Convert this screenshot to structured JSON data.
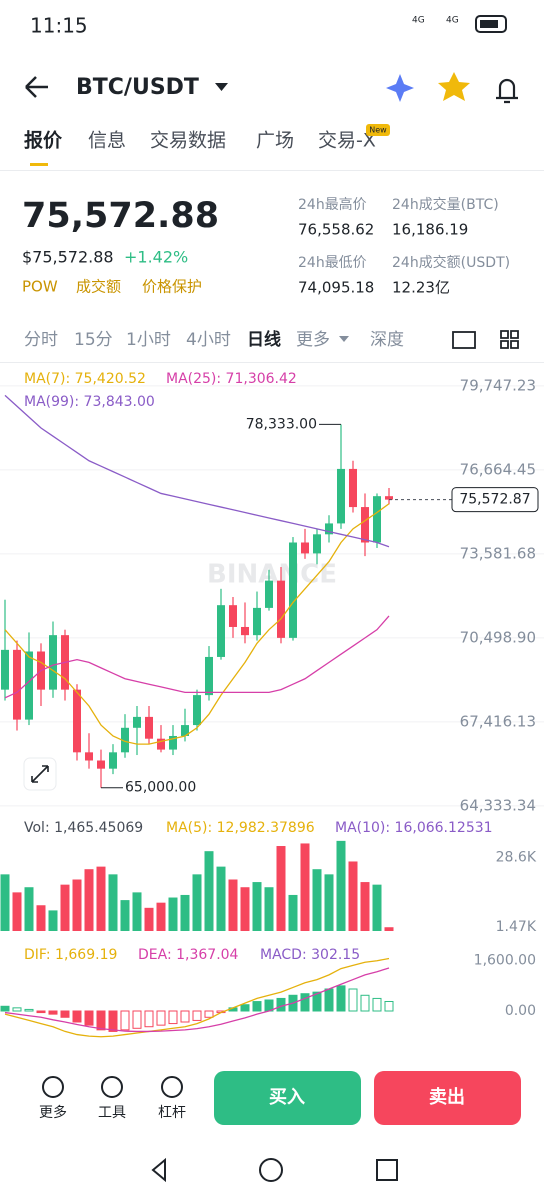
{
  "status": {
    "time": "11:15",
    "signal": [
      "4G",
      "4G"
    ]
  },
  "nav": {
    "pair": "BTC/USDT",
    "tabs": [
      "报价",
      "信息",
      "交易数据",
      "广场",
      "交易-X"
    ],
    "badge": "New"
  },
  "price": {
    "last": "75,572.88",
    "usd": "$75,572.88",
    "change": "+1.42%",
    "tags": [
      "POW",
      "成交额",
      "价格保护"
    ]
  },
  "stats": [
    {
      "label": "24h最高价",
      "value": "76,558.62"
    },
    {
      "label": "24h成交量(BTC)",
      "value": "16,186.19"
    },
    {
      "label": "24h最低价",
      "value": "74,095.18"
    },
    {
      "label": "24h成交额(USDT)",
      "value": "12.23亿"
    }
  ],
  "intervals": [
    "分时",
    "15分",
    "1小时",
    "4小时",
    "日线",
    "更多",
    "深度"
  ],
  "chart_data": {
    "type": "candlestick",
    "watermark": "BINANCE",
    "ma_labels": [
      "MA(7): 75,420.52",
      "MA(25): 71,306.42",
      "MA(99): 73,843.00"
    ],
    "ylim": [
      64000,
      80330
    ],
    "yticks": [
      {
        "value": 79747.23,
        "label": "79,747.23"
      },
      {
        "value": 76664.45,
        "label": "76,664.45"
      },
      {
        "value": 73581.68,
        "label": "73,581.68"
      },
      {
        "value": 70498.9,
        "label": "70,498.90"
      },
      {
        "value": 67416.13,
        "label": "67,416.13"
      },
      {
        "value": 64333.34,
        "label": "64,333.34"
      }
    ],
    "max_label": "78,333.00",
    "min_label": "65,000.00",
    "current_label": "75,572.87",
    "candles": [
      {
        "open": 68600,
        "high": 71900,
        "low": 68200,
        "close": 70060
      },
      {
        "open": 70060,
        "high": 70400,
        "low": 67100,
        "close": 67500
      },
      {
        "open": 67500,
        "high": 70700,
        "low": 67300,
        "close": 70000
      },
      {
        "open": 70000,
        "high": 70300,
        "low": 68000,
        "close": 68600
      },
      {
        "open": 68600,
        "high": 71100,
        "low": 68300,
        "close": 70600
      },
      {
        "open": 70600,
        "high": 70800,
        "low": 68200,
        "close": 68600
      },
      {
        "open": 68600,
        "high": 68800,
        "low": 66000,
        "close": 66300
      },
      {
        "open": 66300,
        "high": 67000,
        "low": 65700,
        "close": 66000
      },
      {
        "open": 66000,
        "high": 66400,
        "low": 65000,
        "close": 65700
      },
      {
        "open": 65700,
        "high": 66600,
        "low": 65500,
        "close": 66300
      },
      {
        "open": 66300,
        "high": 67700,
        "low": 66100,
        "close": 67200
      },
      {
        "open": 67200,
        "high": 68000,
        "low": 66200,
        "close": 67600
      },
      {
        "open": 67600,
        "high": 68000,
        "low": 66600,
        "close": 66800
      },
      {
        "open": 66800,
        "high": 67300,
        "low": 66300,
        "close": 66400
      },
      {
        "open": 66400,
        "high": 67300,
        "low": 66200,
        "close": 66900
      },
      {
        "open": 66900,
        "high": 67900,
        "low": 66700,
        "close": 67300
      },
      {
        "open": 67300,
        "high": 68600,
        "low": 67100,
        "close": 68400
      },
      {
        "open": 68400,
        "high": 70200,
        "low": 68200,
        "close": 69800
      },
      {
        "open": 69800,
        "high": 72300,
        "low": 69700,
        "close": 71700
      },
      {
        "open": 71700,
        "high": 72000,
        "low": 70500,
        "close": 70900
      },
      {
        "open": 70900,
        "high": 71800,
        "low": 70300,
        "close": 70600
      },
      {
        "open": 70600,
        "high": 72200,
        "low": 70400,
        "close": 71600
      },
      {
        "open": 71600,
        "high": 73000,
        "low": 71500,
        "close": 72600
      },
      {
        "open": 72600,
        "high": 73100,
        "low": 70300,
        "close": 70500
      },
      {
        "open": 70500,
        "high": 74200,
        "low": 70400,
        "close": 74000
      },
      {
        "open": 74000,
        "high": 74500,
        "low": 73400,
        "close": 73600
      },
      {
        "open": 73600,
        "high": 74500,
        "low": 73200,
        "close": 74300
      },
      {
        "open": 74300,
        "high": 75000,
        "low": 74000,
        "close": 74700
      },
      {
        "open": 74700,
        "high": 78333,
        "low": 74500,
        "close": 76700
      },
      {
        "open": 76700,
        "high": 77000,
        "low": 75100,
        "close": 75300
      },
      {
        "open": 75300,
        "high": 75800,
        "low": 73500,
        "close": 74000
      },
      {
        "open": 74000,
        "high": 75800,
        "low": 73800,
        "close": 75700
      },
      {
        "open": 75700,
        "high": 76000,
        "low": 75400,
        "close": 75572.87
      }
    ],
    "ma": [
      {
        "color": "#e5b10c",
        "values": [
          70800,
          70300,
          69800,
          69600,
          69300,
          69000,
          68500,
          68000,
          67300,
          66900,
          66700,
          66600,
          66600,
          66700,
          66800,
          66900,
          67200,
          67700,
          68400,
          69000,
          69600,
          70300,
          70800,
          71200,
          71800,
          72300,
          72800,
          73300,
          74000,
          74500,
          74800,
          75100,
          75420.52
        ]
      },
      {
        "color": "#d63fa8",
        "values": [
          68300,
          68500,
          68900,
          69300,
          69500,
          69600,
          69700,
          69600,
          69400,
          69200,
          69000,
          68900,
          68800,
          68700,
          68600,
          68500,
          68500,
          68500,
          68500,
          68500,
          68500,
          68500,
          68500,
          68600,
          68800,
          69000,
          69300,
          69600,
          69900,
          70200,
          70500,
          70800,
          71306.42
        ]
      },
      {
        "color": "#8a5cc7",
        "values": [
          79400,
          79000,
          78600,
          78200,
          77900,
          77600,
          77300,
          77000,
          76800,
          76600,
          76400,
          76200,
          76000,
          75800,
          75700,
          75600,
          75500,
          75400,
          75300,
          75200,
          75100,
          75000,
          74900,
          74800,
          74700,
          74600,
          74500,
          74400,
          74300,
          74200,
          74100,
          74000,
          73843
        ]
      }
    ],
    "volume": {
      "labels": [
        "Vol: 1,465.45069",
        "MA(5): 12,982.37896",
        "MA(10): 16,066.12531"
      ],
      "ylim": [
        0,
        40000
      ],
      "yticks": [
        {
          "value": 28600,
          "label": "28.6K"
        },
        {
          "value": 1470,
          "label": "1.47K"
        }
      ],
      "values": [
        22000,
        15000,
        17000,
        10000,
        8000,
        18000,
        20000,
        24000,
        25000,
        22000,
        12000,
        15000,
        9000,
        11000,
        13000,
        14000,
        22000,
        31000,
        25000,
        20000,
        17000,
        19000,
        17000,
        33000,
        14000,
        34000,
        24000,
        22000,
        35000,
        27000,
        19000,
        18000,
        1465.45069
      ]
    },
    "macd": {
      "labels": [
        "DIF: 1,669.19",
        "DEA: 1,367.04",
        "MACD: 302.15"
      ],
      "ylim": [
        -1400,
        2100
      ],
      "yticks": [
        {
          "value": 1600,
          "label": "1,600.00"
        },
        {
          "value": 0,
          "label": "0.00"
        }
      ],
      "dif": [
        -100,
        -200,
        -300,
        -400,
        -500,
        -650,
        -750,
        -800,
        -820,
        -800,
        -750,
        -700,
        -650,
        -600,
        -550,
        -500,
        -400,
        -250,
        -50,
        100,
        250,
        400,
        500,
        600,
        750,
        900,
        1000,
        1150,
        1350,
        1450,
        1550,
        1600,
        1669.19
      ],
      "dea": [
        -50,
        -100,
        -150,
        -200,
        -280,
        -350,
        -430,
        -500,
        -560,
        -600,
        -640,
        -650,
        -650,
        -640,
        -620,
        -600,
        -560,
        -500,
        -420,
        -320,
        -220,
        -100,
        0,
        150,
        250,
        400,
        550,
        700,
        850,
        1000,
        1150,
        1250,
        1367.04
      ],
      "hist": [
        150,
        100,
        50,
        -50,
        -100,
        -200,
        -350,
        -450,
        -600,
        -650,
        -600,
        -550,
        -500,
        -450,
        -400,
        -350,
        -300,
        -200,
        -50,
        100,
        200,
        300,
        350,
        400,
        500,
        550,
        600,
        700,
        800,
        700,
        500,
        400,
        302.15
      ]
    }
  },
  "bottom": {
    "tools": [
      "更多",
      "工具",
      "杠杆"
    ],
    "buy": "买入",
    "sell": "卖出"
  }
}
